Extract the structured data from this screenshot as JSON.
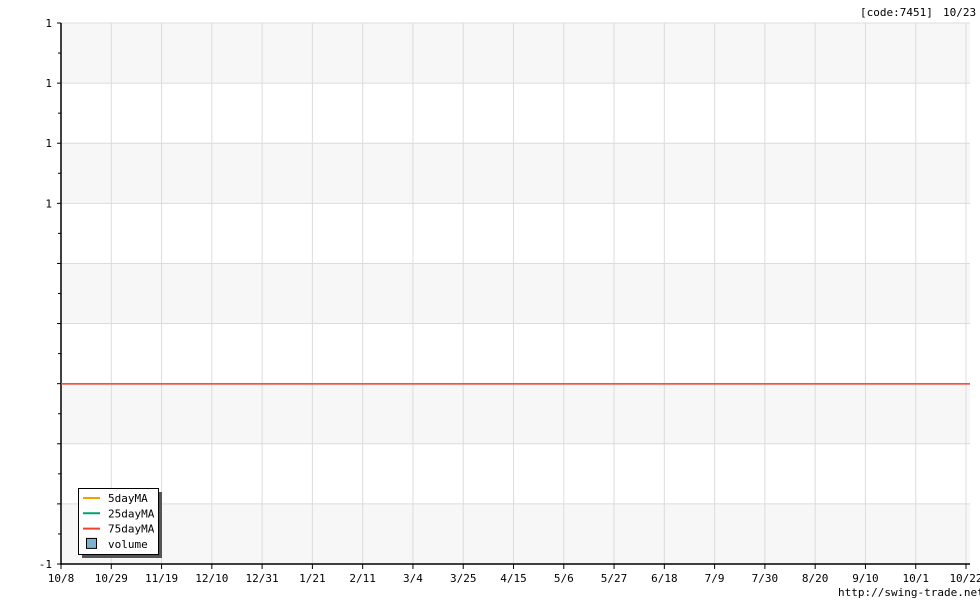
{
  "header": {
    "code": "[code:7451]",
    "date": "10/23"
  },
  "footer": {
    "source": "http://swing-trade.net"
  },
  "chart_data": {
    "type": "line",
    "x_tick_labels": [
      "10/8",
      "10/29",
      "11/19",
      "12/10",
      "12/31",
      "1/21",
      "2/11",
      "3/4",
      "3/25",
      "4/15",
      "5/6",
      "5/27",
      "6/18",
      "7/9",
      "7/30",
      "8/20",
      "9/10",
      "10/1",
      "10/22"
    ],
    "y_tick_labels": [
      "1",
      "1",
      "1",
      "1",
      "",
      "",
      "",
      "",
      "",
      "-1"
    ],
    "grid": true,
    "legend_position": "bottom-left",
    "legend": [
      {
        "name": "5dayMA",
        "kind": "line",
        "color": "#f0a000"
      },
      {
        "name": "25dayMA",
        "kind": "line",
        "color": "#00a070"
      },
      {
        "name": "75dayMA",
        "kind": "line",
        "color": "#f04030"
      },
      {
        "name": "volume",
        "kind": "box",
        "color": "#80b0d0"
      }
    ],
    "series": [
      {
        "name": "75dayMA",
        "color": "#f04030",
        "level_fraction_from_top": 0.667
      }
    ]
  }
}
